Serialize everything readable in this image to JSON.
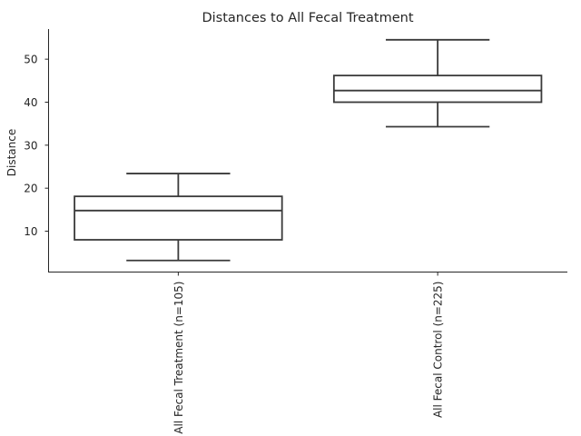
{
  "chart_data": {
    "type": "box",
    "title": "Distances to All Fecal Treatment",
    "xlabel": "",
    "ylabel": "Distance",
    "ylim": [
      0.5,
      57
    ],
    "yticks": [
      10,
      20,
      30,
      40,
      50
    ],
    "grid": false,
    "categories": [
      "All Fecal Treatment (n=105)",
      "All Fecal Control (n=225)"
    ],
    "boxes": [
      {
        "category": "All Fecal Treatment (n=105)",
        "whislo": 3.2,
        "q1": 8.0,
        "median": 14.8,
        "q3": 18.1,
        "whishi": 23.4
      },
      {
        "category": "All Fecal Control (n=225)",
        "whislo": 34.3,
        "q1": 40.0,
        "median": 42.7,
        "q3": 46.2,
        "whishi": 54.5
      }
    ]
  }
}
